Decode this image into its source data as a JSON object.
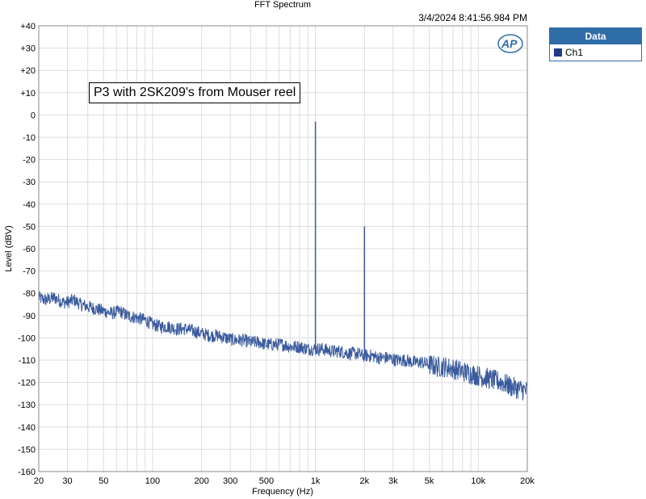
{
  "chart_data": {
    "type": "line",
    "title": "FFT Spectrum",
    "timestamp": "3/4/2024 8:41:56.984 PM",
    "xlabel": "Frequency (Hz)",
    "ylabel": "Level (dBV)",
    "xscale": "log",
    "xlim": [
      20,
      20000
    ],
    "ylim": [
      -160,
      40
    ],
    "grid": true,
    "x_ticks": [
      {
        "value": 20,
        "label": "20"
      },
      {
        "value": 30,
        "label": "30"
      },
      {
        "value": 50,
        "label": "50"
      },
      {
        "value": 100,
        "label": "100"
      },
      {
        "value": 200,
        "label": "200"
      },
      {
        "value": 300,
        "label": "300"
      },
      {
        "value": 500,
        "label": "500"
      },
      {
        "value": 1000,
        "label": "1k"
      },
      {
        "value": 2000,
        "label": "2k"
      },
      {
        "value": 3000,
        "label": "3k"
      },
      {
        "value": 5000,
        "label": "5k"
      },
      {
        "value": 10000,
        "label": "10k"
      },
      {
        "value": 20000,
        "label": "20k"
      }
    ],
    "y_ticks": [
      {
        "value": 40,
        "label": "+40"
      },
      {
        "value": 30,
        "label": "+30"
      },
      {
        "value": 20,
        "label": "+20"
      },
      {
        "value": 10,
        "label": "+10"
      },
      {
        "value": 0,
        "label": "0"
      },
      {
        "value": -10,
        "label": "-10"
      },
      {
        "value": -20,
        "label": "-20"
      },
      {
        "value": -30,
        "label": "-30"
      },
      {
        "value": -40,
        "label": "-40"
      },
      {
        "value": -50,
        "label": "-50"
      },
      {
        "value": -60,
        "label": "-60"
      },
      {
        "value": -70,
        "label": "-70"
      },
      {
        "value": -80,
        "label": "-80"
      },
      {
        "value": -90,
        "label": "-90"
      },
      {
        "value": -100,
        "label": "-100"
      },
      {
        "value": -110,
        "label": "-110"
      },
      {
        "value": -120,
        "label": "-120"
      },
      {
        "value": -130,
        "label": "-130"
      },
      {
        "value": -140,
        "label": "-140"
      },
      {
        "value": -150,
        "label": "-150"
      },
      {
        "value": -160,
        "label": "-160"
      }
    ],
    "legend": {
      "title": "Data",
      "position": "right"
    },
    "annotation": "P3 with 2SK209's from Mouser reel",
    "series": [
      {
        "name": "Ch1",
        "color": "#3a5a9c",
        "x": [
          20,
          22,
          25,
          28,
          30,
          33,
          36,
          40,
          45,
          50,
          56,
          63,
          70,
          80,
          90,
          100,
          112,
          125,
          140,
          160,
          180,
          200,
          225,
          250,
          280,
          315,
          355,
          400,
          450,
          500,
          560,
          630,
          710,
          800,
          900,
          980,
          1000,
          1020,
          1100,
          1250,
          1400,
          1600,
          1800,
          1950,
          2000,
          2050,
          2200,
          2500,
          2800,
          3150,
          3550,
          4000,
          4500,
          5000,
          5600,
          6300,
          7100,
          8000,
          9000,
          10000,
          11200,
          12500,
          14000,
          16000,
          18000,
          20000
        ],
        "y": [
          -82,
          -83,
          -82,
          -84,
          -84,
          -83,
          -85,
          -86,
          -87,
          -88,
          -89,
          -88,
          -90,
          -91,
          -92,
          -94,
          -95,
          -95,
          -96,
          -96,
          -97,
          -98,
          -99,
          -99,
          -100,
          -101,
          -101,
          -102,
          -102,
          -103,
          -103,
          -103,
          -104,
          -104,
          -105,
          -105,
          -3,
          -105,
          -105,
          -106,
          -106,
          -107,
          -107,
          -108,
          -50,
          -108,
          -108,
          -109,
          -109,
          -110,
          -110,
          -111,
          -111,
          -112,
          -113,
          -113,
          -114,
          -115,
          -116,
          -117,
          -118,
          -119,
          -120,
          -122,
          -123,
          -124
        ],
        "noise_spread_db": 3
      }
    ]
  },
  "chart_data_display": {
    "legend_title": "Data",
    "series_label": "Ch1"
  }
}
